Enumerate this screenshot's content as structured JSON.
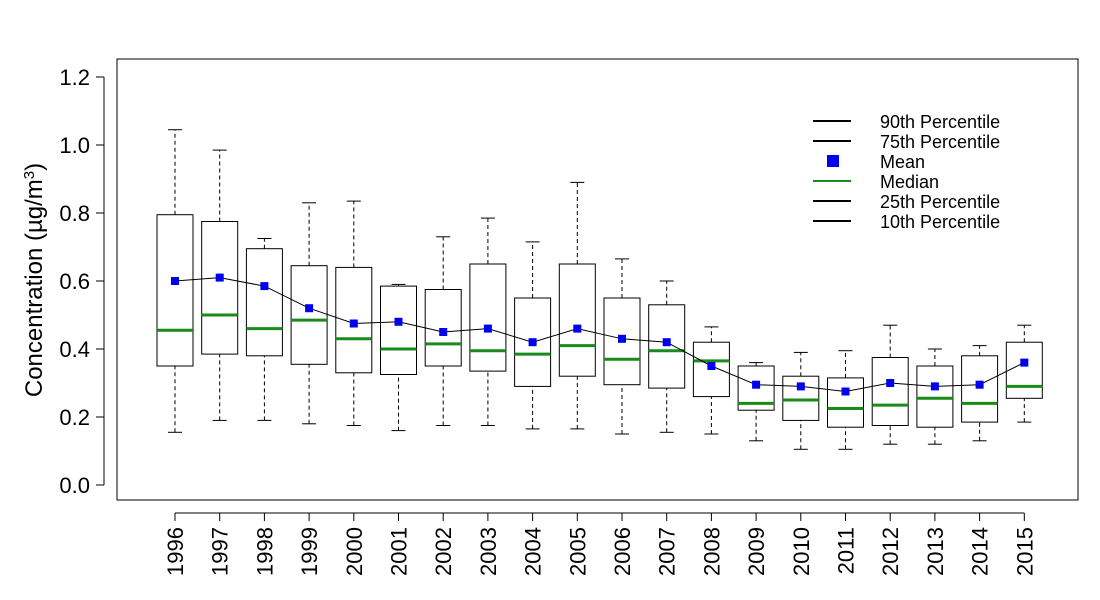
{
  "colors": {
    "median": "#1a8a1a",
    "mean": "#0000ee",
    "frame": "#000000"
  },
  "chart_data": {
    "type": "boxplot",
    "ylabel": "Concentration (µg/m",
    "ylabel_sup": "3",
    "ylabel_close": ")",
    "ylim": [
      -0.05,
      1.25
    ],
    "yticks": [
      0.0,
      0.2,
      0.4,
      0.6,
      0.8,
      1.0,
      1.2
    ],
    "ytick_labels": [
      "0.0",
      "0.2",
      "0.4",
      "0.6",
      "0.8",
      "1.0",
      "1.2"
    ],
    "categories": [
      "1996",
      "1997",
      "1998",
      "1999",
      "2000",
      "2001",
      "2002",
      "2003",
      "2004",
      "2005",
      "2006",
      "2007",
      "2008",
      "2009",
      "2010",
      "2011",
      "2012",
      "2013",
      "2014",
      "2015"
    ],
    "p10": [
      0.155,
      0.19,
      0.19,
      0.18,
      0.175,
      0.16,
      0.175,
      0.175,
      0.165,
      0.165,
      0.15,
      0.155,
      0.15,
      0.13,
      0.105,
      0.105,
      0.12,
      0.12,
      0.13,
      0.185
    ],
    "p25": [
      0.35,
      0.385,
      0.38,
      0.355,
      0.33,
      0.325,
      0.35,
      0.335,
      0.29,
      0.32,
      0.295,
      0.285,
      0.26,
      0.22,
      0.19,
      0.17,
      0.175,
      0.17,
      0.185,
      0.255
    ],
    "median": [
      0.455,
      0.5,
      0.46,
      0.485,
      0.43,
      0.4,
      0.415,
      0.395,
      0.385,
      0.41,
      0.37,
      0.395,
      0.365,
      0.24,
      0.25,
      0.225,
      0.235,
      0.255,
      0.24,
      0.29
    ],
    "p75": [
      0.795,
      0.775,
      0.695,
      0.645,
      0.64,
      0.585,
      0.575,
      0.65,
      0.55,
      0.65,
      0.55,
      0.53,
      0.42,
      0.35,
      0.32,
      0.315,
      0.375,
      0.35,
      0.38,
      0.42
    ],
    "p90": [
      1.045,
      0.985,
      0.725,
      0.83,
      0.835,
      0.59,
      0.73,
      0.785,
      0.715,
      0.89,
      0.665,
      0.6,
      0.465,
      0.36,
      0.39,
      0.395,
      0.47,
      0.4,
      0.41,
      0.47
    ],
    "mean": [
      0.6,
      0.61,
      0.585,
      0.52,
      0.475,
      0.48,
      0.45,
      0.46,
      0.42,
      0.46,
      0.43,
      0.42,
      0.35,
      0.295,
      0.29,
      0.275,
      0.3,
      0.29,
      0.295,
      0.36
    ],
    "legend": {
      "position": "top-right",
      "items": [
        {
          "label": "90th Percentile",
          "kind": "line"
        },
        {
          "label": "75th Percentile",
          "kind": "line"
        },
        {
          "label": "Mean",
          "kind": "square"
        },
        {
          "label": "Median",
          "kind": "median"
        },
        {
          "label": "25th Percentile",
          "kind": "line"
        },
        {
          "label": "10th Percentile",
          "kind": "line"
        }
      ]
    }
  }
}
